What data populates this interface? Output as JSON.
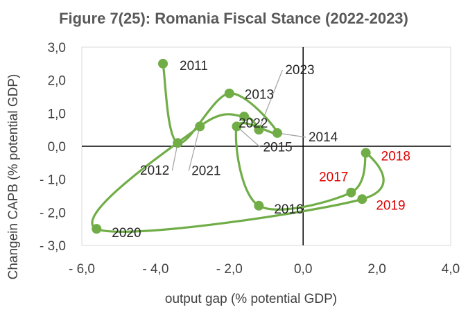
{
  "chart_data": {
    "type": "scatter",
    "title": "Figure 7(25): Romania Fiscal Stance (2022-2023)",
    "xlabel": "output gap (% potential GDP)",
    "ylabel": "Changein CAPB (% potential GDP)",
    "xlim": [
      -6.0,
      4.0
    ],
    "ylim": [
      -3.0,
      3.0
    ],
    "xticks": [
      -6.0,
      -4.0,
      -2.0,
      0.0,
      2.0,
      4.0
    ],
    "yticks": [
      3.0,
      2.0,
      1.0,
      0.0,
      -1.0,
      -2.0,
      -3.0
    ],
    "xtick_labels": [
      "- 6,0",
      "- 4,0",
      "- 2,0",
      "0,0",
      "2,0",
      "4,0"
    ],
    "ytick_labels": [
      "3,0",
      "2,0",
      "1,0",
      "0,0",
      "- 1,0",
      "- 2,0",
      "- 3,0"
    ],
    "line_color": "#70ad47",
    "highlight_color": "#e00000",
    "label_color": "#262626",
    "series": [
      {
        "name": "Romania fiscal stance",
        "points": [
          {
            "year": "2011",
            "x": -3.8,
            "y": 2.5
          },
          {
            "year": "2012",
            "x": -3.4,
            "y": 0.1
          },
          {
            "year": "2013",
            "x": -2.0,
            "y": 1.6
          },
          {
            "year": "2014",
            "x": -0.7,
            "y": 0.4
          },
          {
            "year": "2015",
            "x": -1.8,
            "y": 0.6
          },
          {
            "year": "2016",
            "x": -1.2,
            "y": -1.8
          },
          {
            "year": "2017",
            "x": 1.3,
            "y": -1.4
          },
          {
            "year": "2018",
            "x": 1.7,
            "y": -0.2
          },
          {
            "year": "2019",
            "x": 1.6,
            "y": -1.6
          },
          {
            "year": "2020",
            "x": -5.6,
            "y": -2.5
          },
          {
            "year": "2021",
            "x": -2.8,
            "y": 0.6
          },
          {
            "year": "2022",
            "x": -1.6,
            "y": 0.9
          },
          {
            "year": "2023",
            "x": -1.2,
            "y": 0.5
          }
        ]
      }
    ],
    "highlighted_years": [
      "2017",
      "2018",
      "2019"
    ]
  }
}
